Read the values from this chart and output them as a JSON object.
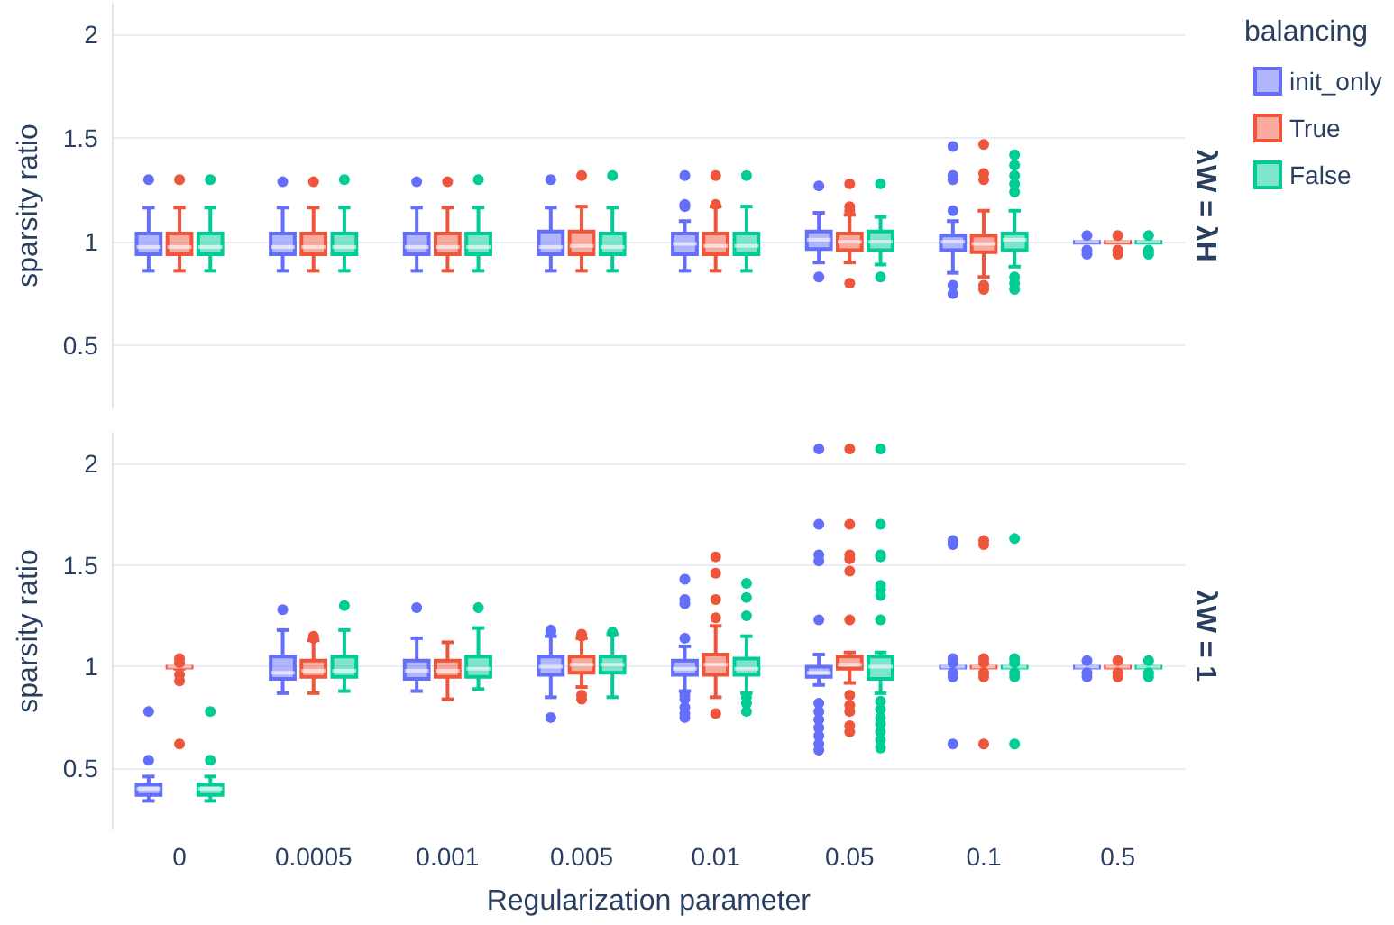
{
  "chart_data": [
    {
      "type": "box",
      "ylabel": "sparsity ratio",
      "legend_title": "balancing",
      "legend": "top right",
      "grid": "y",
      "tick_labels": "y",
      "annotations": [
        "λW = λH"
      ],
      "categories": [
        "0",
        "0.0005",
        "0.001",
        "0.005",
        "0.01",
        "0.05",
        "0.1",
        "0.5"
      ],
      "ylim": [
        0.2,
        2.15
      ],
      "yticks": [
        0.5,
        1,
        1.5,
        2
      ],
      "series": [
        {
          "name": "init_only",
          "color": "#636efa",
          "boxes": [
            {
              "low": 0.86,
              "q1": 0.94,
              "median": 0.975,
              "q3": 1.04,
              "high": 1.165,
              "outliers": [
                1.3
              ]
            },
            {
              "low": 0.86,
              "q1": 0.94,
              "median": 0.975,
              "q3": 1.04,
              "high": 1.165,
              "outliers": [
                1.29
              ]
            },
            {
              "low": 0.86,
              "q1": 0.94,
              "median": 0.975,
              "q3": 1.04,
              "high": 1.165,
              "outliers": [
                1.29
              ]
            },
            {
              "low": 0.86,
              "q1": 0.94,
              "median": 0.975,
              "q3": 1.05,
              "high": 1.165,
              "outliers": [
                1.3
              ]
            },
            {
              "low": 0.86,
              "q1": 0.94,
              "median": 0.99,
              "q3": 1.04,
              "high": 1.1,
              "outliers": [
                1.17,
                1.18,
                1.32
              ]
            },
            {
              "low": 0.9,
              "q1": 0.965,
              "median": 1.01,
              "q3": 1.05,
              "high": 1.14,
              "outliers": [
                0.83,
                1.27
              ]
            },
            {
              "low": 0.85,
              "q1": 0.96,
              "median": 1,
              "q3": 1.03,
              "high": 1.1,
              "outliers": [
                0.75,
                0.79,
                1.15,
                1.3,
                1.32,
                1.46
              ]
            },
            {
              "low": 1,
              "q1": 1,
              "median": 1,
              "q3": 1,
              "high": 1,
              "outliers": [
                0.94,
                0.96,
                1.03
              ]
            }
          ]
        },
        {
          "name": "True",
          "color": "#ef553b",
          "boxes": [
            {
              "low": 0.86,
              "q1": 0.94,
              "median": 0.975,
              "q3": 1.04,
              "high": 1.165,
              "outliers": [
                1.3
              ]
            },
            {
              "low": 0.86,
              "q1": 0.94,
              "median": 0.975,
              "q3": 1.04,
              "high": 1.165,
              "outliers": [
                1.29
              ]
            },
            {
              "low": 0.86,
              "q1": 0.94,
              "median": 0.975,
              "q3": 1.04,
              "high": 1.165,
              "outliers": [
                1.29
              ]
            },
            {
              "low": 0.86,
              "q1": 0.94,
              "median": 0.98,
              "q3": 1.05,
              "high": 1.17,
              "outliers": [
                1.32
              ]
            },
            {
              "low": 0.86,
              "q1": 0.94,
              "median": 0.98,
              "q3": 1.04,
              "high": 1.17,
              "outliers": [
                1.18,
                1.32
              ]
            },
            {
              "low": 0.9,
              "q1": 0.96,
              "median": 1,
              "q3": 1.04,
              "high": 1.13,
              "outliers": [
                0.8,
                1.15,
                1.17,
                1.28
              ]
            },
            {
              "low": 0.83,
              "q1": 0.95,
              "median": 0.99,
              "q3": 1.03,
              "high": 1.15,
              "outliers": [
                0.77,
                0.79,
                1.3,
                1.33,
                1.47
              ]
            },
            {
              "low": 1,
              "q1": 1,
              "median": 1,
              "q3": 1,
              "high": 1,
              "outliers": [
                0.94,
                0.96,
                1.03
              ]
            }
          ]
        },
        {
          "name": "False",
          "color": "#00cc96",
          "boxes": [
            {
              "low": 0.86,
              "q1": 0.94,
              "median": 0.975,
              "q3": 1.04,
              "high": 1.165,
              "outliers": [
                1.3
              ]
            },
            {
              "low": 0.86,
              "q1": 0.94,
              "median": 0.975,
              "q3": 1.04,
              "high": 1.165,
              "outliers": [
                1.3
              ]
            },
            {
              "low": 0.86,
              "q1": 0.94,
              "median": 0.975,
              "q3": 1.04,
              "high": 1.165,
              "outliers": [
                1.3
              ]
            },
            {
              "low": 0.86,
              "q1": 0.94,
              "median": 0.975,
              "q3": 1.04,
              "high": 1.165,
              "outliers": [
                1.32
              ]
            },
            {
              "low": 0.86,
              "q1": 0.94,
              "median": 0.98,
              "q3": 1.04,
              "high": 1.17,
              "outliers": [
                1.32
              ]
            },
            {
              "low": 0.89,
              "q1": 0.96,
              "median": 1,
              "q3": 1.05,
              "high": 1.12,
              "outliers": [
                0.83,
                1.28
              ]
            },
            {
              "low": 0.88,
              "q1": 0.96,
              "median": 1.01,
              "q3": 1.04,
              "high": 1.15,
              "outliers": [
                0.77,
                0.8,
                0.83,
                1.24,
                1.28,
                1.32,
                1.37,
                1.42
              ]
            },
            {
              "low": 1,
              "q1": 1,
              "median": 1,
              "q3": 1,
              "high": 1,
              "outliers": [
                0.94,
                0.96,
                1.03
              ]
            }
          ]
        }
      ]
    },
    {
      "type": "box",
      "ylabel": "sparsity ratio",
      "xlabel": "Regularization parameter",
      "grid": "y",
      "annotations": [
        "λW = 1"
      ],
      "categories": [
        "0",
        "0.0005",
        "0.001",
        "0.005",
        "0.01",
        "0.05",
        "0.1",
        "0.5"
      ],
      "ylim": [
        0.2,
        2.15
      ],
      "yticks": [
        0.5,
        1,
        1.5,
        2
      ],
      "series": [
        {
          "color": "#636efa",
          "boxes": [
            {
              "low": 0.34,
              "q1": 0.37,
              "median": 0.4,
              "q3": 0.42,
              "high": 0.46,
              "outliers": [
                0.54,
                0.78
              ]
            },
            {
              "low": 0.87,
              "q1": 0.94,
              "median": 0.97,
              "q3": 1.05,
              "high": 1.18,
              "outliers": [
                1.28
              ]
            },
            {
              "low": 0.88,
              "q1": 0.94,
              "median": 0.98,
              "q3": 1.03,
              "high": 1.14,
              "outliers": [
                1.29
              ]
            },
            {
              "low": 0.85,
              "q1": 0.96,
              "median": 1,
              "q3": 1.05,
              "high": 1.15,
              "outliers": [
                0.75,
                1.17,
                1.18
              ]
            },
            {
              "low": 0.88,
              "q1": 0.96,
              "median": 0.99,
              "q3": 1.03,
              "high": 1.1,
              "outliers": [
                0.75,
                0.77,
                0.8,
                0.84,
                0.86,
                1.14,
                1.31,
                1.33,
                1.43
              ]
            },
            {
              "low": 0.91,
              "q1": 0.95,
              "median": 0.97,
              "q3": 1,
              "high": 1.06,
              "outliers": [
                0.59,
                0.62,
                0.66,
                0.7,
                0.74,
                0.78,
                0.82,
                1.23,
                1.52,
                1.55,
                1.7,
                2.07
              ]
            },
            {
              "low": 1,
              "q1": 1,
              "median": 1,
              "q3": 1,
              "high": 1,
              "outliers": [
                0.62,
                0.95,
                0.97,
                1.02,
                1.04,
                1.6,
                1.62
              ]
            },
            {
              "low": 1,
              "q1": 1,
              "median": 1,
              "q3": 1,
              "high": 1,
              "outliers": [
                0.95,
                0.97,
                1.03
              ]
            }
          ]
        },
        {
          "color": "#ef553b",
          "boxes": [
            {
              "low": 0.99,
              "q1": 1,
              "median": 1,
              "q3": 1,
              "high": 1,
              "outliers": [
                0.62,
                0.93,
                0.96,
                1.02,
                1.04
              ]
            },
            {
              "low": 0.87,
              "q1": 0.95,
              "median": 0.98,
              "q3": 1.03,
              "high": 1.13,
              "outliers": [
                1.14,
                1.15
              ]
            },
            {
              "low": 0.84,
              "q1": 0.95,
              "median": 0.98,
              "q3": 1.03,
              "high": 1.12
            },
            {
              "low": 0.9,
              "q1": 0.97,
              "median": 1.01,
              "q3": 1.05,
              "high": 1.14,
              "outliers": [
                0.84,
                0.86,
                1.15,
                1.16
              ]
            },
            {
              "low": 0.85,
              "q1": 0.96,
              "median": 1.01,
              "q3": 1.06,
              "high": 1.2,
              "outliers": [
                0.77,
                1.24,
                1.33,
                1.46,
                1.54
              ]
            },
            {
              "low": 0.92,
              "q1": 0.99,
              "median": 1.01,
              "q3": 1.05,
              "high": 1.07,
              "outliers": [
                0.68,
                0.71,
                0.78,
                0.81,
                0.86,
                1.23,
                1.47,
                1.53,
                1.55,
                1.7,
                2.07
              ]
            },
            {
              "low": 1,
              "q1": 1,
              "median": 1,
              "q3": 1,
              "high": 1,
              "outliers": [
                0.62,
                0.95,
                0.97,
                1.02,
                1.04,
                1.6,
                1.62
              ]
            },
            {
              "low": 1,
              "q1": 1,
              "median": 1,
              "q3": 1,
              "high": 1,
              "outliers": [
                0.95,
                0.97,
                1.03
              ]
            }
          ]
        },
        {
          "color": "#00cc96",
          "boxes": [
            {
              "low": 0.34,
              "q1": 0.37,
              "median": 0.4,
              "q3": 0.42,
              "high": 0.46,
              "outliers": [
                0.54,
                0.78
              ]
            },
            {
              "low": 0.88,
              "q1": 0.95,
              "median": 0.98,
              "q3": 1.05,
              "high": 1.18,
              "outliers": [
                1.3
              ]
            },
            {
              "low": 0.89,
              "q1": 0.95,
              "median": 0.99,
              "q3": 1.05,
              "high": 1.19,
              "outliers": [
                1.29
              ]
            },
            {
              "low": 0.85,
              "q1": 0.97,
              "median": 1.01,
              "q3": 1.05,
              "high": 1.16,
              "outliers": [
                1.17
              ]
            },
            {
              "low": 0.87,
              "q1": 0.96,
              "median": 0.99,
              "q3": 1.04,
              "high": 1.15,
              "outliers": [
                0.78,
                0.82,
                0.85,
                1.25,
                1.34,
                1.41
              ]
            },
            {
              "low": 0.87,
              "q1": 0.94,
              "median": 1,
              "q3": 1.05,
              "high": 1.07,
              "outliers": [
                0.6,
                0.64,
                0.68,
                0.72,
                0.75,
                0.79,
                0.83,
                1.23,
                1.35,
                1.38,
                1.4,
                1.54,
                1.55,
                1.7,
                2.07
              ]
            },
            {
              "low": 1,
              "q1": 1,
              "median": 1,
              "q3": 1,
              "high": 1,
              "outliers": [
                0.62,
                0.95,
                0.97,
                1.02,
                1.04,
                1.63
              ]
            },
            {
              "low": 1,
              "q1": 1,
              "median": 1,
              "q3": 1,
              "high": 1,
              "outliers": [
                0.95,
                0.97,
                1.03
              ]
            }
          ]
        }
      ]
    }
  ]
}
